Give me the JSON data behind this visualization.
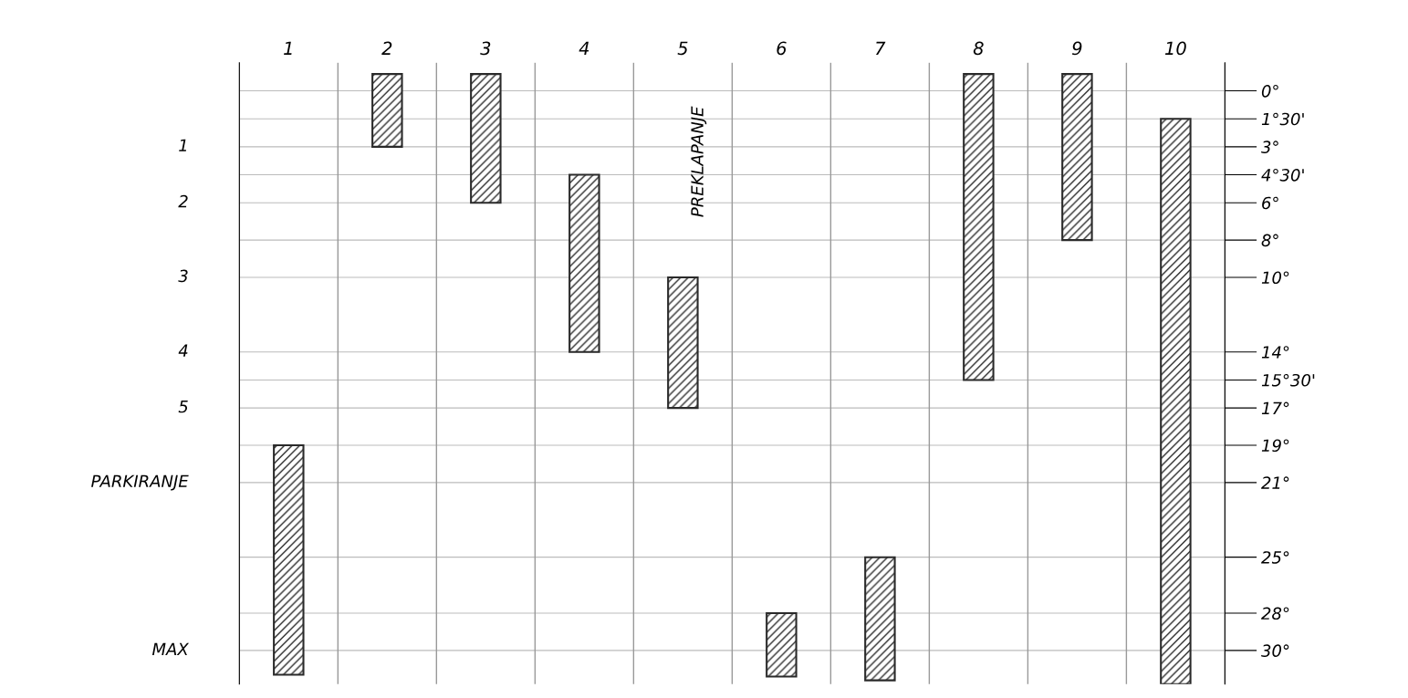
{
  "chart_data": {
    "type": "bar",
    "categories": [
      "1",
      "2",
      "3",
      "4",
      "5",
      "6",
      "7",
      "8",
      "9",
      "10"
    ],
    "series": [
      {
        "color": "#2a2a2a",
        "values": [
          12.3,
          3.9,
          6.9,
          9.5,
          7,
          3.4,
          6.6,
          16.4,
          8.9,
          30.3
        ],
        "base": [
          19,
          -0.9,
          -0.9,
          4.5,
          10,
          28,
          25,
          -0.9,
          -0.9,
          1.5
        ]
      }
    ],
    "ylim": [
      31.8,
      -1.5
    ],
    "yticks": [
      {
        "value": 0,
        "label": "0°"
      },
      {
        "value": 1.5,
        "label": "1°30'"
      },
      {
        "value": 3,
        "label": "3°"
      },
      {
        "value": 4.5,
        "label": "4°30'"
      },
      {
        "value": 6,
        "label": "6°"
      },
      {
        "value": 8,
        "label": "8°"
      },
      {
        "value": 10,
        "label": "10°"
      },
      {
        "value": 14,
        "label": "14°"
      },
      {
        "value": 15.5,
        "label": "15°30'"
      },
      {
        "value": 17,
        "label": "17°"
      },
      {
        "value": 19,
        "label": "19°"
      },
      {
        "value": 21,
        "label": "21°"
      },
      {
        "value": 25,
        "label": "25°"
      },
      {
        "value": 28,
        "label": "28°"
      },
      {
        "value": 30,
        "label": "30°"
      }
    ],
    "annotations": [
      "1",
      "2",
      "3",
      "4",
      "5",
      "PARKIRANJE",
      "MAX",
      "PREKLAPANJE"
    ],
    "grid": true
  }
}
